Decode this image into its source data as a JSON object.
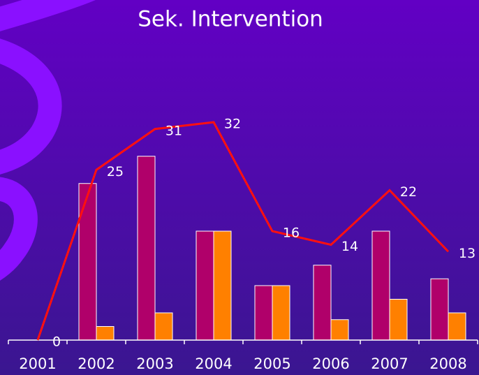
{
  "chart_data": {
    "type": "bar",
    "title": "Sek. Intervention",
    "categories": [
      "2001",
      "2002",
      "2003",
      "2004",
      "2005",
      "2006",
      "2007",
      "2008"
    ],
    "series": [
      {
        "type": "bar",
        "color": "#b0006a",
        "values": [
          null,
          23,
          27,
          16,
          8,
          11,
          16,
          9
        ]
      },
      {
        "type": "bar",
        "color": "#ff8000",
        "values": [
          null,
          2,
          4,
          16,
          8,
          3,
          6,
          4
        ]
      },
      {
        "type": "line",
        "color": "#ff1010",
        "values": [
          0,
          25,
          31,
          32,
          16,
          14,
          22,
          13
        ]
      }
    ],
    "ylim": [
      0,
      35
    ]
  }
}
